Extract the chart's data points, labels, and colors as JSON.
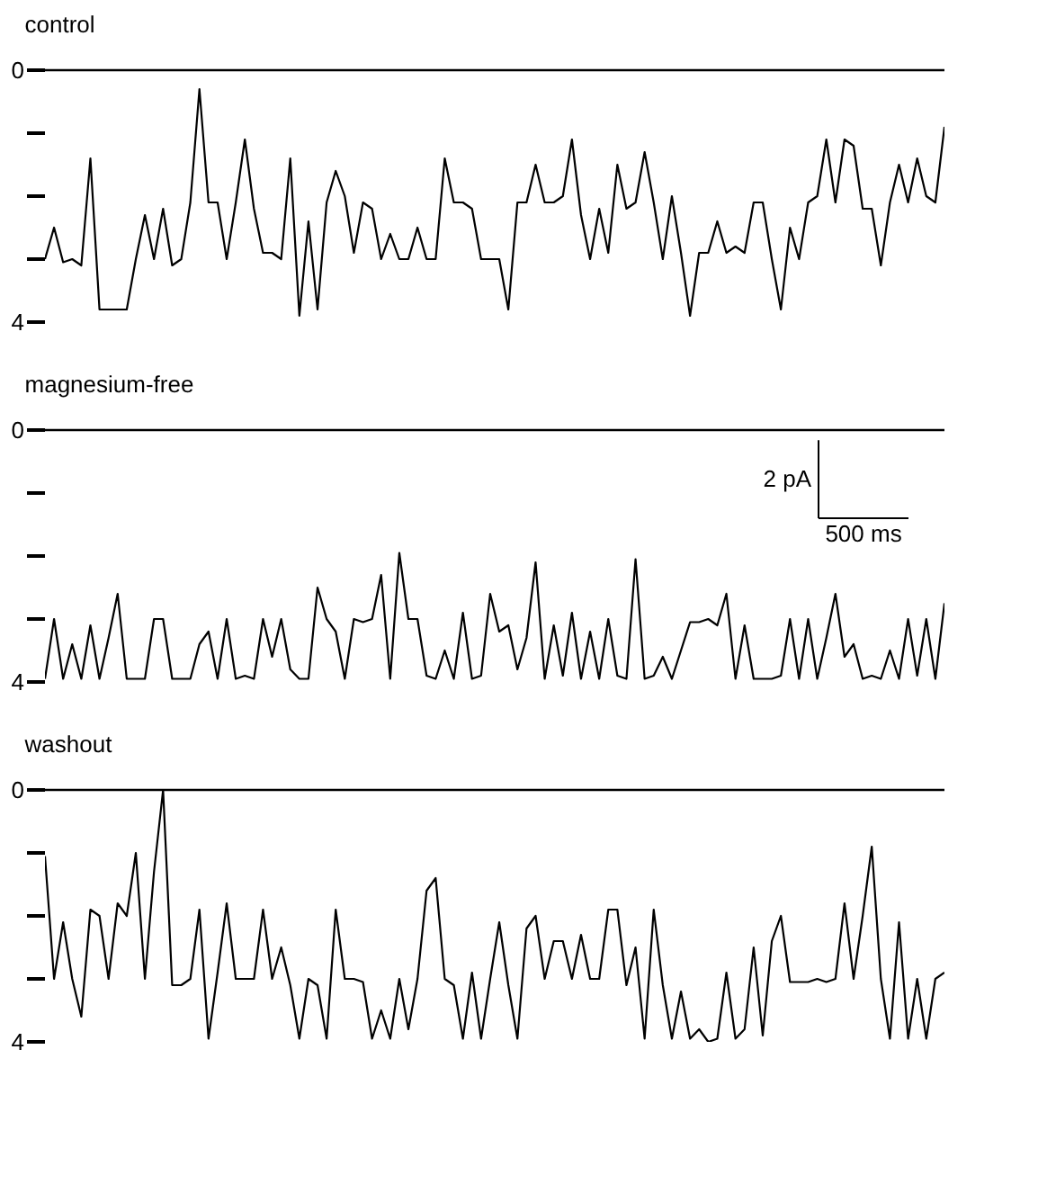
{
  "chart_data": [
    {
      "type": "line",
      "title": "control",
      "categories": [
        null,
        null,
        null,
        null,
        null,
        null,
        null,
        null,
        null,
        null,
        null,
        null,
        null,
        null,
        null,
        null,
        null,
        null,
        null,
        null,
        null,
        null,
        null,
        null,
        null,
        null,
        null,
        null,
        null,
        null,
        null,
        null,
        null,
        null,
        null,
        null,
        null,
        null,
        null,
        null,
        null,
        null,
        null,
        null,
        null,
        null,
        null,
        null,
        null,
        null,
        null,
        null,
        null,
        null,
        null,
        null,
        null,
        null,
        null,
        null,
        null,
        null,
        null,
        null,
        null,
        null,
        null,
        null,
        null,
        null,
        null,
        null,
        null,
        null,
        null,
        null,
        null,
        null,
        null,
        null,
        null,
        null,
        null,
        null,
        null,
        null,
        null,
        null,
        null,
        null,
        null,
        null,
        null,
        null,
        null,
        null,
        null,
        null,
        null,
        null
      ],
      "series": [
        {
          "color": "#000000",
          "values": [
            3.0,
            2.5,
            3.05,
            3.0,
            3.1,
            1.4,
            3.8,
            3.8,
            3.8,
            3.8,
            3.0,
            2.3,
            3.0,
            2.2,
            3.1,
            3.0,
            2.1,
            0.3,
            2.1,
            2.1,
            3.0,
            2.1,
            1.1,
            2.2,
            2.9,
            2.9,
            3.0,
            1.4,
            3.9,
            2.4,
            3.8,
            2.1,
            1.6,
            2.0,
            2.9,
            2.1,
            2.2,
            3.0,
            2.6,
            3.0,
            3.0,
            2.5,
            3.0,
            3.0,
            1.4,
            2.1,
            2.1,
            2.2,
            3.0,
            3.0,
            3.0,
            3.8,
            2.1,
            2.1,
            1.5,
            2.1,
            2.1,
            2.0,
            1.1,
            2.3,
            3.0,
            2.2,
            2.9,
            1.5,
            2.2,
            2.1,
            1.3,
            2.1,
            3.0,
            2.0,
            2.9,
            3.9,
            2.9,
            2.9,
            2.4,
            2.9,
            2.8,
            2.9,
            2.1,
            2.1,
            3.0,
            3.8,
            2.5,
            3.0,
            2.1,
            2.0,
            1.1,
            2.1,
            1.1,
            1.2,
            2.2,
            2.2,
            3.1,
            2.1,
            1.5,
            2.1,
            1.4,
            2.0,
            2.1,
            0.9
          ]
        }
      ],
      "ylim": [
        4,
        0
      ],
      "yticks": [
        0,
        {
          "value": 1,
          "label": null
        },
        {
          "value": 2,
          "label": null
        },
        {
          "value": 3,
          "label": null
        },
        4
      ],
      "ref_lines": [
        {
          "axis": "y",
          "value": 0,
          "color": "#000000"
        }
      ],
      "tick_labels": "y",
      "grid": false,
      "marker": "none",
      "line_style": "solid"
    },
    {
      "type": "line",
      "title": "magnesium-free",
      "categories": [
        null,
        null,
        null,
        null,
        null,
        null,
        null,
        null,
        null,
        null,
        null,
        null,
        null,
        null,
        null,
        null,
        null,
        null,
        null,
        null,
        null,
        null,
        null,
        null,
        null,
        null,
        null,
        null,
        null,
        null,
        null,
        null,
        null,
        null,
        null,
        null,
        null,
        null,
        null,
        null,
        null,
        null,
        null,
        null,
        null,
        null,
        null,
        null,
        null,
        null,
        null,
        null,
        null,
        null,
        null,
        null,
        null,
        null,
        null,
        null,
        null,
        null,
        null,
        null,
        null,
        null,
        null,
        null,
        null,
        null,
        null,
        null,
        null,
        null,
        null,
        null,
        null,
        null,
        null,
        null,
        null,
        null,
        null,
        null,
        null,
        null,
        null,
        null,
        null,
        null,
        null,
        null,
        null,
        null,
        null,
        null,
        null,
        null,
        null,
        null
      ],
      "series": [
        {
          "color": "#000000",
          "values": [
            3.95,
            3.0,
            3.95,
            3.4,
            3.95,
            3.1,
            3.95,
            3.3,
            2.6,
            3.95,
            3.95,
            3.95,
            3.0,
            3.0,
            3.95,
            3.95,
            3.95,
            3.4,
            3.2,
            3.95,
            3.0,
            3.95,
            3.9,
            3.95,
            3.0,
            3.6,
            3.0,
            3.8,
            3.95,
            3.95,
            2.5,
            3.0,
            3.2,
            3.95,
            3.0,
            3.05,
            3.0,
            2.3,
            3.95,
            1.95,
            3.0,
            3.0,
            3.9,
            3.95,
            3.5,
            3.95,
            2.9,
            3.95,
            3.9,
            2.6,
            3.2,
            3.1,
            3.8,
            3.3,
            2.1,
            3.95,
            3.1,
            3.9,
            2.9,
            3.95,
            3.2,
            3.95,
            3.0,
            3.9,
            3.95,
            2.05,
            3.95,
            3.9,
            3.6,
            3.95,
            3.5,
            3.05,
            3.05,
            3.0,
            3.1,
            2.6,
            3.95,
            3.1,
            3.95,
            3.95,
            3.95,
            3.9,
            3.0,
            3.95,
            3.0,
            3.95,
            3.3,
            2.6,
            3.6,
            3.4,
            3.95,
            3.9,
            3.95,
            3.5,
            3.95,
            3.0,
            3.9,
            3.0,
            3.95,
            2.75
          ]
        }
      ],
      "ylim": [
        4,
        0
      ],
      "yticks": [
        0,
        {
          "value": 1,
          "label": null
        },
        {
          "value": 2,
          "label": null
        },
        {
          "value": 3,
          "label": null
        },
        4
      ],
      "ref_lines": [
        {
          "axis": "y",
          "value": 0,
          "color": "#000000"
        }
      ],
      "annotations": [
        "2 pA",
        "500 ms"
      ],
      "tick_labels": "y",
      "grid": false,
      "marker": "none",
      "line_style": "solid"
    },
    {
      "type": "line",
      "title": "washout",
      "categories": [
        null,
        null,
        null,
        null,
        null,
        null,
        null,
        null,
        null,
        null,
        null,
        null,
        null,
        null,
        null,
        null,
        null,
        null,
        null,
        null,
        null,
        null,
        null,
        null,
        null,
        null,
        null,
        null,
        null,
        null,
        null,
        null,
        null,
        null,
        null,
        null,
        null,
        null,
        null,
        null,
        null,
        null,
        null,
        null,
        null,
        null,
        null,
        null,
        null,
        null,
        null,
        null,
        null,
        null,
        null,
        null,
        null,
        null,
        null,
        null,
        null,
        null,
        null,
        null,
        null,
        null,
        null,
        null,
        null,
        null,
        null,
        null,
        null,
        null,
        null,
        null,
        null,
        null,
        null,
        null,
        null,
        null,
        null,
        null,
        null,
        null,
        null,
        null,
        null,
        null,
        null,
        null,
        null,
        null,
        null,
        null,
        null,
        null,
        null,
        null
      ],
      "series": [
        {
          "color": "#000000",
          "values": [
            1.05,
            3.0,
            2.1,
            3.0,
            3.6,
            1.9,
            2.0,
            3.0,
            1.8,
            2.0,
            1.0,
            3.0,
            1.3,
            0.0,
            3.1,
            3.1,
            3.0,
            1.9,
            3.95,
            2.9,
            1.8,
            3.0,
            3.0,
            3.0,
            1.9,
            3.0,
            2.5,
            3.1,
            3.95,
            3.0,
            3.1,
            3.95,
            1.9,
            3.0,
            3.0,
            3.05,
            3.95,
            3.5,
            3.95,
            3.0,
            3.8,
            3.0,
            1.6,
            1.4,
            3.0,
            3.1,
            3.95,
            2.9,
            3.95,
            3.0,
            2.1,
            3.1,
            3.95,
            2.2,
            2.0,
            3.0,
            2.4,
            2.4,
            3.0,
            2.3,
            3.0,
            3.0,
            1.9,
            1.9,
            3.1,
            2.5,
            3.95,
            1.9,
            3.1,
            3.95,
            3.2,
            3.95,
            3.8,
            4.0,
            3.95,
            2.9,
            3.95,
            3.8,
            2.5,
            3.9,
            2.4,
            2.0,
            3.05,
            3.05,
            3.05,
            3.0,
            3.05,
            3.0,
            1.8,
            3.0,
            2.0,
            0.9,
            3.0,
            3.95,
            2.1,
            3.95,
            3.0,
            3.95,
            3.0,
            2.9
          ]
        }
      ],
      "ylim": [
        4,
        0
      ],
      "yticks": [
        0,
        {
          "value": 1,
          "label": null
        },
        {
          "value": 2,
          "label": null
        },
        {
          "value": 3,
          "label": null
        },
        4
      ],
      "ref_lines": [
        {
          "axis": "y",
          "value": 0,
          "color": "#000000"
        }
      ],
      "tick_labels": "y",
      "grid": false,
      "marker": "none",
      "line_style": "solid"
    }
  ]
}
